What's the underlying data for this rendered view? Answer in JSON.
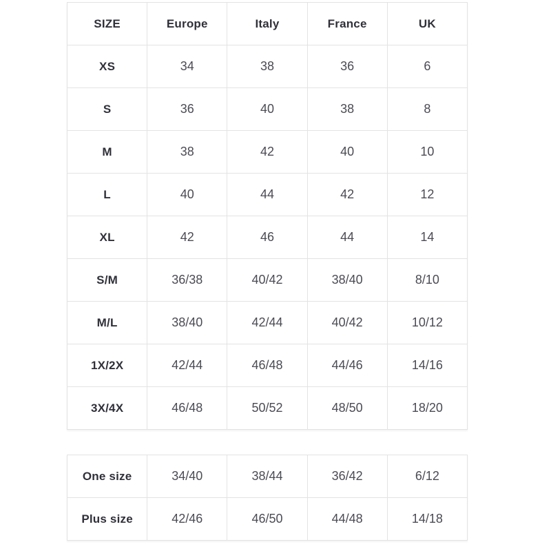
{
  "size_chart": {
    "columns": [
      "SIZE",
      "Europe",
      "Italy",
      "France",
      "UK"
    ],
    "rows": [
      {
        "label": "XS",
        "values": [
          "34",
          "38",
          "36",
          "6"
        ]
      },
      {
        "label": "S",
        "values": [
          "36",
          "40",
          "38",
          "8"
        ]
      },
      {
        "label": "M",
        "values": [
          "38",
          "42",
          "40",
          "10"
        ]
      },
      {
        "label": "L",
        "values": [
          "40",
          "44",
          "42",
          "12"
        ]
      },
      {
        "label": "XL",
        "values": [
          "42",
          "46",
          "44",
          "14"
        ]
      },
      {
        "label": "S/M",
        "values": [
          "36/38",
          "40/42",
          "38/40",
          "8/10"
        ]
      },
      {
        "label": "M/L",
        "values": [
          "38/40",
          "42/44",
          "40/42",
          "10/12"
        ]
      },
      {
        "label": "1X/2X",
        "values": [
          "42/44",
          "46/48",
          "44/46",
          "14/16"
        ]
      },
      {
        "label": "3X/4X",
        "values": [
          "46/48",
          "50/52",
          "48/50",
          "18/20"
        ]
      }
    ],
    "extra_rows": [
      {
        "label": "One size",
        "values": [
          "34/40",
          "38/44",
          "36/42",
          "6/12"
        ]
      },
      {
        "label": "Plus size",
        "values": [
          "42/46",
          "46/50",
          "44/48",
          "14/18"
        ]
      }
    ]
  },
  "colors": {
    "border": "#e3e3e3",
    "header_text": "#30303a",
    "cell_text": "#4b4b54",
    "background": "#ffffff"
  }
}
